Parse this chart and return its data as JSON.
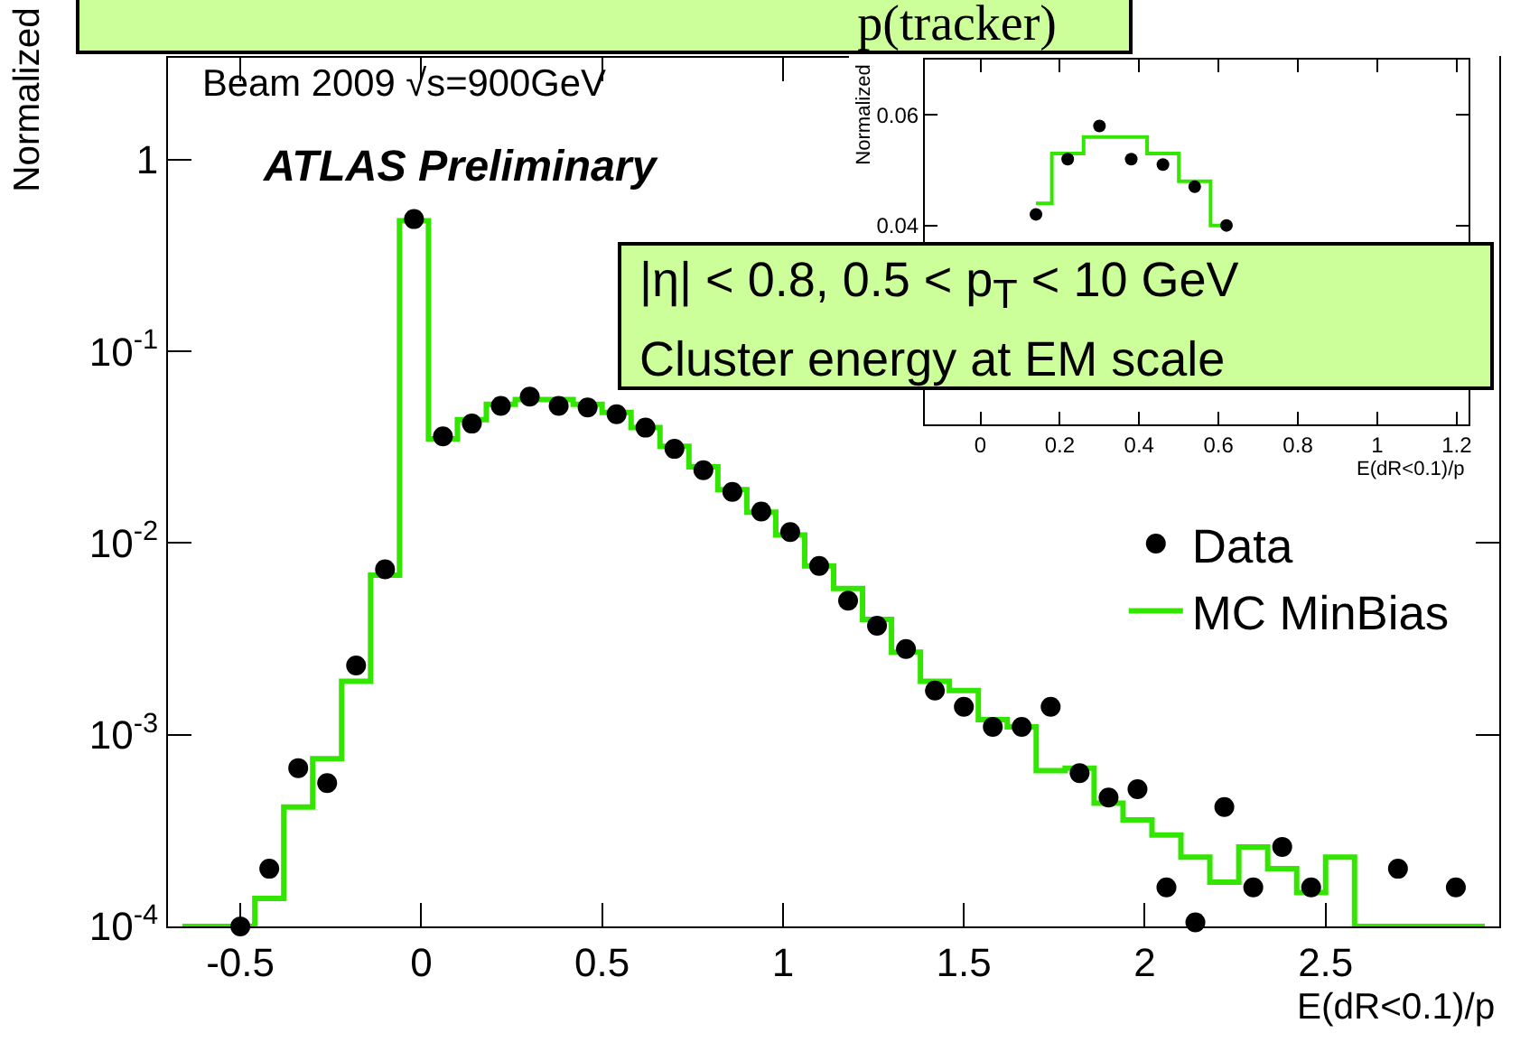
{
  "chart_data": [
    {
      "type": "step",
      "title": "p(tracker)",
      "xlabel": "E(dR<0.1)/p",
      "ylabel": "Normalized",
      "annotations": [
        "Beam 2009 √s=900GeV",
        "ATLAS Preliminary",
        "|η| < 0.8, 0.5 < p$_{T}$ < 10 GeV\nCluster energy at EM scale"
      ],
      "x": [
        -0.66,
        -0.58,
        -0.5,
        -0.42,
        -0.34,
        -0.26,
        -0.18,
        -0.1,
        -0.02,
        0.06,
        0.14,
        0.22,
        0.3,
        0.38,
        0.46,
        0.54,
        0.62,
        0.7,
        0.78,
        0.86,
        0.94,
        1.02,
        1.1,
        1.18,
        1.26,
        1.34,
        1.42,
        1.5,
        1.58,
        1.66,
        1.74,
        1.82,
        1.9,
        1.98,
        2.06,
        2.14,
        2.22,
        2.3,
        2.38,
        2.46,
        2.54,
        2.62,
        2.7,
        2.78,
        2.86,
        2.94
      ],
      "series": [
        {
          "name": "Data",
          "type": "scatter",
          "marker": "circle",
          "color": "#000000",
          "values": [
            null,
            null,
            0.0001,
            0.0002,
            0.00067,
            0.00056,
            0.0023,
            0.0073,
            0.49,
            0.036,
            0.042,
            0.052,
            0.058,
            0.052,
            0.051,
            0.047,
            0.04,
            0.031,
            0.024,
            0.0185,
            0.0146,
            0.0114,
            0.0076,
            0.005,
            0.0037,
            0.0028,
            0.0017,
            0.0014,
            0.0011,
            0.0011,
            0.0014,
            0.00063,
            0.00047,
            0.00052,
            0.00016,
            0.000105,
            0.00042,
            0.00016,
            0.00026,
            0.00016,
            null,
            null,
            0.0002,
            null,
            0.00016,
            null
          ]
        },
        {
          "name": "MC MinBias",
          "type": "step",
          "color": "#33e600",
          "values": [
            0.0001,
            0.0001,
            0.0001,
            0.00014,
            0.00042,
            0.00075,
            0.0019,
            0.0068,
            0.48,
            0.035,
            0.044,
            0.053,
            0.056,
            0.056,
            0.053,
            0.048,
            0.04,
            0.032,
            0.025,
            0.019,
            0.0145,
            0.011,
            0.0076,
            0.0058,
            0.004,
            0.0027,
            0.0019,
            0.0017,
            0.0012,
            0.0011,
            0.00065,
            0.00067,
            0.00044,
            0.00036,
            0.0003,
            0.00023,
            0.00017,
            0.00026,
            0.0002,
            0.00015,
            0.00023,
            0.0001,
            0.0001,
            0.0001,
            0.0001,
            0.0001
          ]
        }
      ],
      "xlim": [
        -0.7,
        2.98
      ],
      "ylim": [
        0.0001,
        3.4
      ],
      "xticks": [
        -0.5,
        0,
        0.5,
        1,
        1.5,
        2,
        2.5
      ],
      "yticks": [
        {
          "value": 0.0001,
          "label": "10$^{-4}$"
        },
        {
          "value": 0.001,
          "label": "10$^{-3}$"
        },
        {
          "value": 0.01,
          "label": "10$^{-2}$"
        },
        {
          "value": 0.1,
          "label": "10$^{-1}$"
        },
        1
      ],
      "log": true,
      "legend": "right"
    },
    {
      "type": "step",
      "xlabel": "E(dR<0.1)/p",
      "ylabel": "Normalized",
      "x": [
        0.14,
        0.22,
        0.3,
        0.38,
        0.46,
        0.54,
        0.62
      ],
      "series": [
        {
          "type": "scatter",
          "marker": "circle",
          "color": "#000000",
          "values": [
            0.042,
            0.052,
            0.058,
            0.052,
            0.051,
            0.047,
            0.04
          ]
        },
        {
          "type": "step",
          "color": "#33e600",
          "values": [
            0.044,
            0.053,
            0.056,
            0.056,
            0.053,
            0.048,
            0.04
          ]
        }
      ],
      "xlim": [
        -0.14,
        1.23
      ],
      "ylim": [
        0.004,
        0.07
      ],
      "xticks": [
        0,
        0.2,
        0.4,
        0.6,
        0.8,
        1,
        1.2
      ],
      "yticks": [
        0.04,
        0.06
      ]
    }
  ]
}
